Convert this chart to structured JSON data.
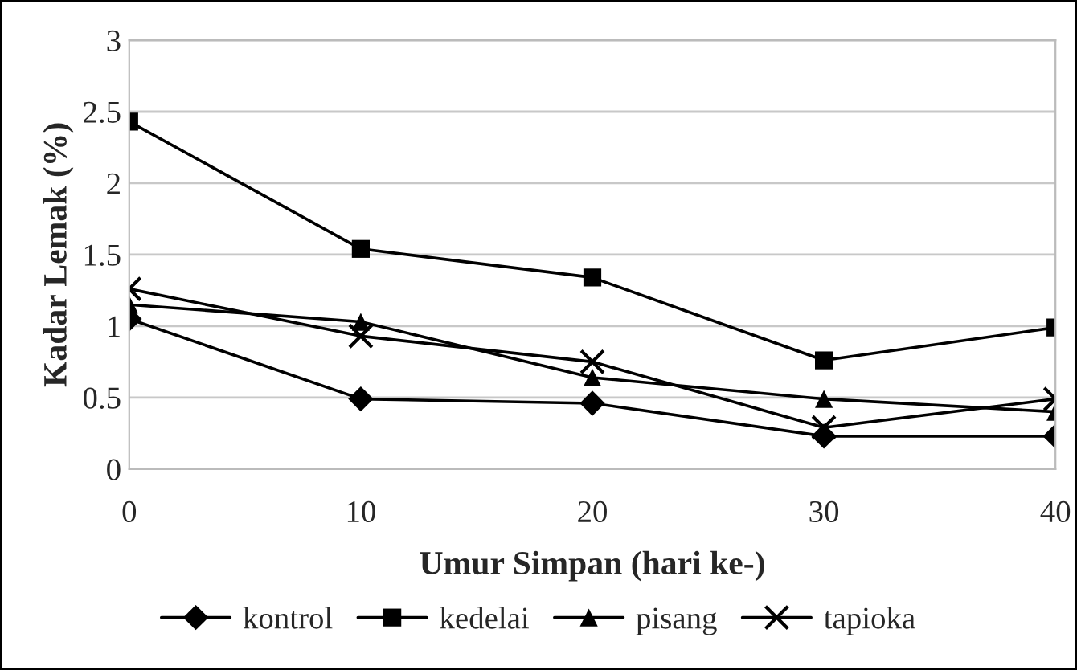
{
  "chart_data": {
    "type": "line",
    "xlabel": "Umur Simpan (hari ke-)",
    "ylabel": "Kadar Lemak (%)",
    "x": [
      0,
      10,
      20,
      30,
      40
    ],
    "series": [
      {
        "name": "kontrol",
        "color": "#000000",
        "marker": "diamond",
        "values": [
          1.05,
          0.49,
          0.46,
          0.23,
          0.23
        ]
      },
      {
        "name": "kedelai",
        "color": "#000000",
        "marker": "square",
        "values": [
          2.43,
          1.54,
          1.34,
          0.76,
          0.99
        ]
      },
      {
        "name": "pisang",
        "color": "#000000",
        "marker": "triangle",
        "values": [
          1.15,
          1.03,
          0.64,
          0.49,
          0.4
        ]
      },
      {
        "name": "tapioka",
        "color": "#000000",
        "marker": "cross",
        "values": [
          1.26,
          0.93,
          0.75,
          0.29,
          0.49
        ]
      }
    ],
    "xlim": [
      0,
      40
    ],
    "xticks": [
      0,
      10,
      20,
      30,
      40
    ],
    "ylim": [
      0,
      3
    ],
    "yticks": [
      0,
      0.5,
      1,
      1.5,
      2,
      2.5,
      3
    ],
    "grid": "y",
    "legend": "bottom",
    "line_style": "solid"
  }
}
